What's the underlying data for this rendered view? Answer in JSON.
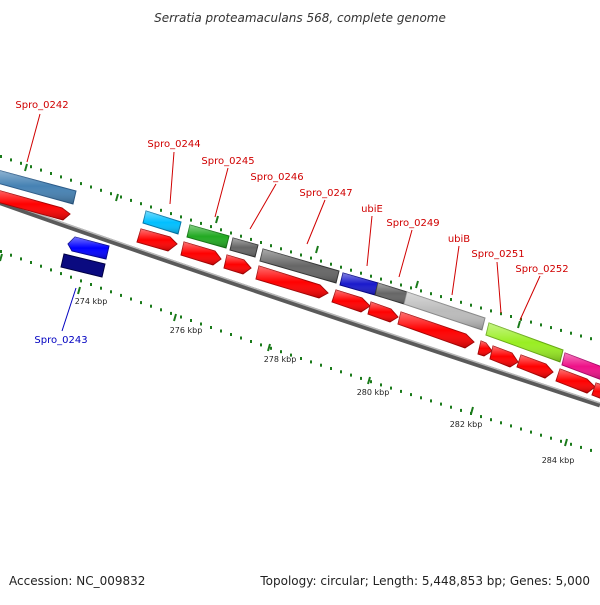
{
  "title": "Serratia proteamaculans 568, complete genome",
  "footer": {
    "accession": "Accession: NC_009832",
    "summary": "Topology: circular; Length: 5,448,853 bp; Genes: 5,000"
  },
  "colors": {
    "backbone": "#888888",
    "forward_cds": "#ff0000",
    "tick": "#1a7a1a",
    "label_forward": "#d00000",
    "label_reverse": "#0000c0"
  },
  "ticks": [
    "274 kbp",
    "276 kbp",
    "278 kbp",
    "280 kbp",
    "282 kbp",
    "284 kbp"
  ],
  "genes": [
    {
      "label": "Spro_0242",
      "strand": "forward",
      "color": "#4682b4"
    },
    {
      "label": "Spro_0243",
      "strand": "reverse",
      "color": "#0000cc"
    },
    {
      "label": "Spro_0244",
      "strand": "forward",
      "color": "#00bfff"
    },
    {
      "label": "Spro_0245",
      "strand": "forward",
      "color": "#22aa22"
    },
    {
      "label": "Spro_0246",
      "strand": "forward",
      "color": "#666666"
    },
    {
      "label": "Spro_0247",
      "strand": "forward",
      "color": "#666666"
    },
    {
      "label": "ubiE",
      "strand": "forward",
      "color": "#1a1acc"
    },
    {
      "label": "Spro_0249",
      "strand": "forward",
      "color": "#666666"
    },
    {
      "label": "ubiB",
      "strand": "forward",
      "color": "#bbbbbb"
    },
    {
      "label": "Spro_0251",
      "strand": "forward",
      "color": "#99ee22"
    },
    {
      "label": "Spro_0252",
      "strand": "forward",
      "color": "#ee1188"
    }
  ]
}
